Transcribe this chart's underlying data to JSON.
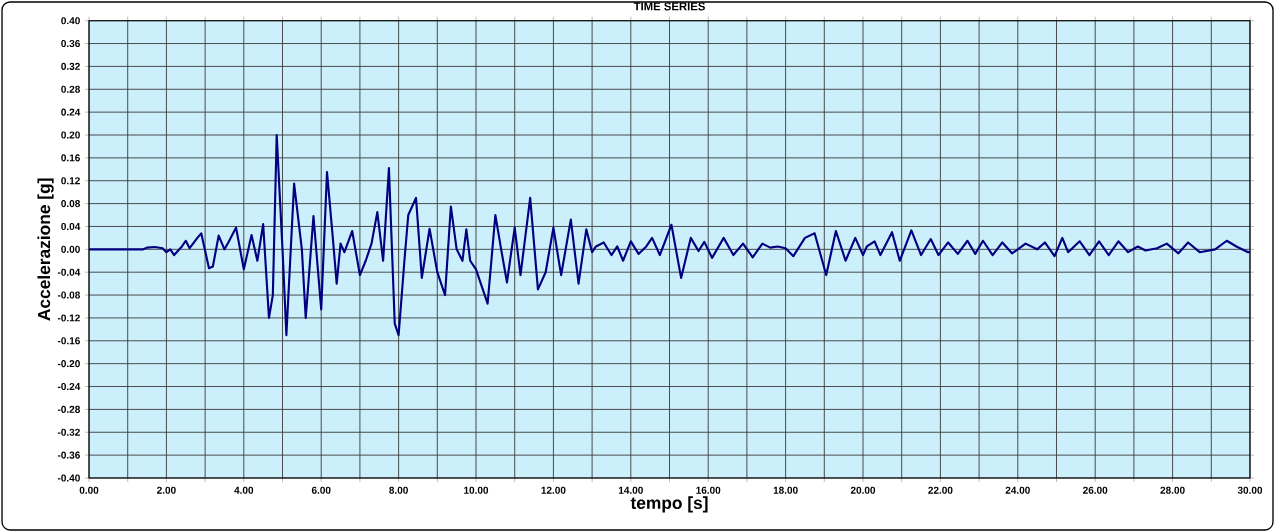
{
  "chart_data": {
    "type": "line",
    "title": "TIME SERIES",
    "xlabel": "tempo [s]",
    "ylabel": "Accelerazione [g]",
    "xlim": [
      0,
      30
    ],
    "ylim": [
      -0.4,
      0.4
    ],
    "xticks": [
      {
        "value": 0,
        "label": "0.00"
      },
      {
        "value": 1,
        "label": null
      },
      {
        "value": 2,
        "label": "2.00"
      },
      {
        "value": 3,
        "label": null
      },
      {
        "value": 4,
        "label": "4.00"
      },
      {
        "value": 5,
        "label": null
      },
      {
        "value": 6,
        "label": "6.00"
      },
      {
        "value": 7,
        "label": null
      },
      {
        "value": 8,
        "label": "8.00"
      },
      {
        "value": 9,
        "label": null
      },
      {
        "value": 10,
        "label": "10.00"
      },
      {
        "value": 11,
        "label": null
      },
      {
        "value": 12,
        "label": "12.00"
      },
      {
        "value": 13,
        "label": null
      },
      {
        "value": 14,
        "label": "14.00"
      },
      {
        "value": 15,
        "label": null
      },
      {
        "value": 16,
        "label": "16.00"
      },
      {
        "value": 17,
        "label": null
      },
      {
        "value": 18,
        "label": "18.00"
      },
      {
        "value": 19,
        "label": null
      },
      {
        "value": 20,
        "label": "20.00"
      },
      {
        "value": 21,
        "label": null
      },
      {
        "value": 22,
        "label": "22.00"
      },
      {
        "value": 23,
        "label": null
      },
      {
        "value": 24,
        "label": "24.00"
      },
      {
        "value": 25,
        "label": null
      },
      {
        "value": 26,
        "label": "26.00"
      },
      {
        "value": 27,
        "label": null
      },
      {
        "value": 28,
        "label": "28.00"
      },
      {
        "value": 29,
        "label": null
      },
      {
        "value": 30,
        "label": "30.00"
      }
    ],
    "yticks": [
      {
        "value": 0.4,
        "label": "0.40"
      },
      {
        "value": 0.36,
        "label": "0.36"
      },
      {
        "value": 0.32,
        "label": "0.32"
      },
      {
        "value": 0.28,
        "label": "0.28"
      },
      {
        "value": 0.24,
        "label": "0.24"
      },
      {
        "value": 0.2,
        "label": "0.20"
      },
      {
        "value": 0.16,
        "label": "0.16"
      },
      {
        "value": 0.12,
        "label": "0.12"
      },
      {
        "value": 0.08,
        "label": "0.08"
      },
      {
        "value": 0.04,
        "label": "0.04"
      },
      {
        "value": 0,
        "label": "0.00"
      },
      {
        "value": -0.04,
        "label": "-0.04"
      },
      {
        "value": -0.08,
        "label": "-0.08"
      },
      {
        "value": -0.12,
        "label": "-0.12"
      },
      {
        "value": -0.16,
        "label": "-0.16"
      },
      {
        "value": -0.2,
        "label": "-0.20"
      },
      {
        "value": -0.24,
        "label": "-0.24"
      },
      {
        "value": -0.28,
        "label": "-0.28"
      },
      {
        "value": -0.32,
        "label": "-0.32"
      },
      {
        "value": -0.36,
        "label": "-0.36"
      },
      {
        "value": -0.4,
        "label": "-0.40"
      }
    ],
    "grid": true,
    "marker": "none",
    "line_style": "solid",
    "series": [
      {
        "color": "#000080",
        "x": [
          0,
          1.4,
          1.5,
          1.7,
          1.9,
          2.0,
          2.1,
          2.2,
          2.4,
          2.5,
          2.6,
          2.8,
          2.9,
          3.1,
          3.2,
          3.35,
          3.5,
          3.6,
          3.8,
          4.0,
          4.2,
          4.35,
          4.5,
          4.65,
          4.75,
          4.85,
          5.0,
          5.1,
          5.3,
          5.5,
          5.6,
          5.8,
          6.0,
          6.15,
          6.3,
          6.4,
          6.5,
          6.6,
          6.8,
          7.0,
          7.15,
          7.3,
          7.45,
          7.6,
          7.75,
          7.9,
          8.0,
          8.15,
          8.25,
          8.45,
          8.6,
          8.8,
          9.0,
          9.2,
          9.35,
          9.5,
          9.65,
          9.75,
          9.85,
          10.0,
          10.3,
          10.5,
          10.65,
          10.8,
          11.0,
          11.15,
          11.4,
          11.6,
          11.8,
          12.0,
          12.2,
          12.45,
          12.65,
          12.85,
          13.0,
          13.1,
          13.3,
          13.5,
          13.65,
          13.8,
          14.0,
          14.2,
          14.4,
          14.55,
          14.75,
          15.05,
          15.3,
          15.55,
          15.75,
          15.9,
          16.1,
          16.4,
          16.65,
          16.9,
          17.15,
          17.4,
          17.6,
          17.8,
          18.0,
          18.2,
          18.5,
          18.75,
          19.05,
          19.3,
          19.55,
          19.8,
          20.0,
          20.1,
          20.3,
          20.45,
          20.75,
          20.95,
          21.25,
          21.5,
          21.75,
          21.95,
          22.2,
          22.45,
          22.7,
          22.9,
          23.1,
          23.35,
          23.6,
          23.85,
          24.0,
          24.2,
          24.5,
          24.7,
          24.95,
          25.15,
          25.3,
          25.6,
          25.85,
          26.1,
          26.35,
          26.6,
          26.85,
          27.1,
          27.3,
          27.6,
          27.85,
          28.15,
          28.4,
          28.7,
          29.1,
          29.4,
          29.65,
          29.95,
          30.0
        ],
        "values": [
          0,
          0,
          0.003,
          0.004,
          0.002,
          -0.005,
          0,
          -0.01,
          0.005,
          0.015,
          0.002,
          0.02,
          0.028,
          -0.033,
          -0.03,
          0.024,
          0.0,
          0.012,
          0.038,
          -0.035,
          0.025,
          -0.02,
          0.044,
          -0.12,
          -0.08,
          0.2,
          0.0,
          -0.15,
          0.115,
          0.0,
          -0.12,
          0.058,
          -0.105,
          0.135,
          0.02,
          -0.06,
          0.01,
          -0.005,
          0.032,
          -0.045,
          -0.02,
          0.01,
          0.065,
          -0.02,
          0.142,
          -0.13,
          -0.15,
          -0.02,
          0.06,
          0.09,
          -0.05,
          0.036,
          -0.04,
          -0.08,
          0.075,
          0.0,
          -0.02,
          0.035,
          -0.02,
          -0.035,
          -0.095,
          0.06,
          0.0,
          -0.058,
          0.038,
          -0.045,
          0.09,
          -0.07,
          -0.04,
          0.038,
          -0.045,
          0.052,
          -0.06,
          0.035,
          -0.005,
          0.005,
          0.012,
          -0.01,
          0.005,
          -0.02,
          0.014,
          -0.008,
          0.005,
          0.02,
          -0.01,
          0.043,
          -0.05,
          0.02,
          -0.003,
          0.013,
          -0.015,
          0.02,
          -0.01,
          0.01,
          -0.014,
          0.01,
          0.003,
          0.005,
          0.002,
          -0.012,
          0.02,
          0.028,
          -0.045,
          0.032,
          -0.02,
          0.02,
          -0.01,
          0.005,
          0.014,
          -0.01,
          0.03,
          -0.02,
          0.033,
          -0.01,
          0.018,
          -0.01,
          0.012,
          -0.008,
          0.015,
          -0.008,
          0.015,
          -0.01,
          0.012,
          -0.007,
          0.0,
          0.01,
          0.0,
          0.012,
          -0.012,
          0.02,
          -0.005,
          0.014,
          -0.01,
          0.014,
          -0.01,
          0.014,
          -0.005,
          0.005,
          -0.002,
          0.002,
          0.01,
          -0.007,
          0.012,
          -0.005,
          0.0,
          0.015,
          0.005,
          -0.005,
          -0.005
        ]
      }
    ]
  }
}
